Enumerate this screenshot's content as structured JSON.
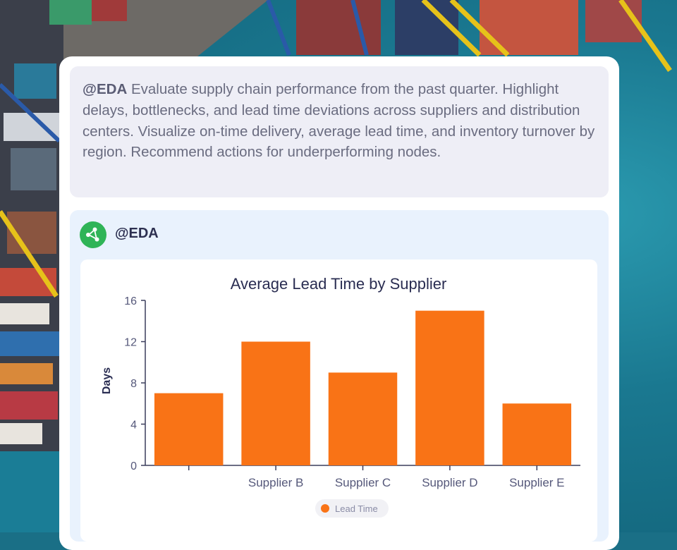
{
  "prompt": {
    "mention": "@EDA",
    "text": " Evaluate supply chain performance from the past quarter. Highlight delays, bottlenecks, and lead time deviations across suppliers and distribution centers. Visualize on-time delivery, average lead time, and inventory turnover by region. Recommend actions for underperforming nodes."
  },
  "response": {
    "agent_name": "@EDA",
    "avatar_icon": "share-nodes-icon",
    "avatar_color": "#2fb457"
  },
  "chart_data": {
    "type": "bar",
    "title": "Average Lead Time by Supplier",
    "xlabel": "",
    "ylabel": "Days",
    "categories": [
      "",
      "Supplier B",
      "Supplier C",
      "Supplier D",
      "Supplier E"
    ],
    "series": [
      {
        "name": "Lead Time",
        "values": [
          7,
          12,
          9,
          15,
          6
        ],
        "color": "#f97316"
      }
    ],
    "ylim": [
      0,
      16
    ],
    "yticks": [
      0,
      4,
      8,
      12,
      16
    ],
    "grid": false,
    "legend_position": "bottom"
  }
}
